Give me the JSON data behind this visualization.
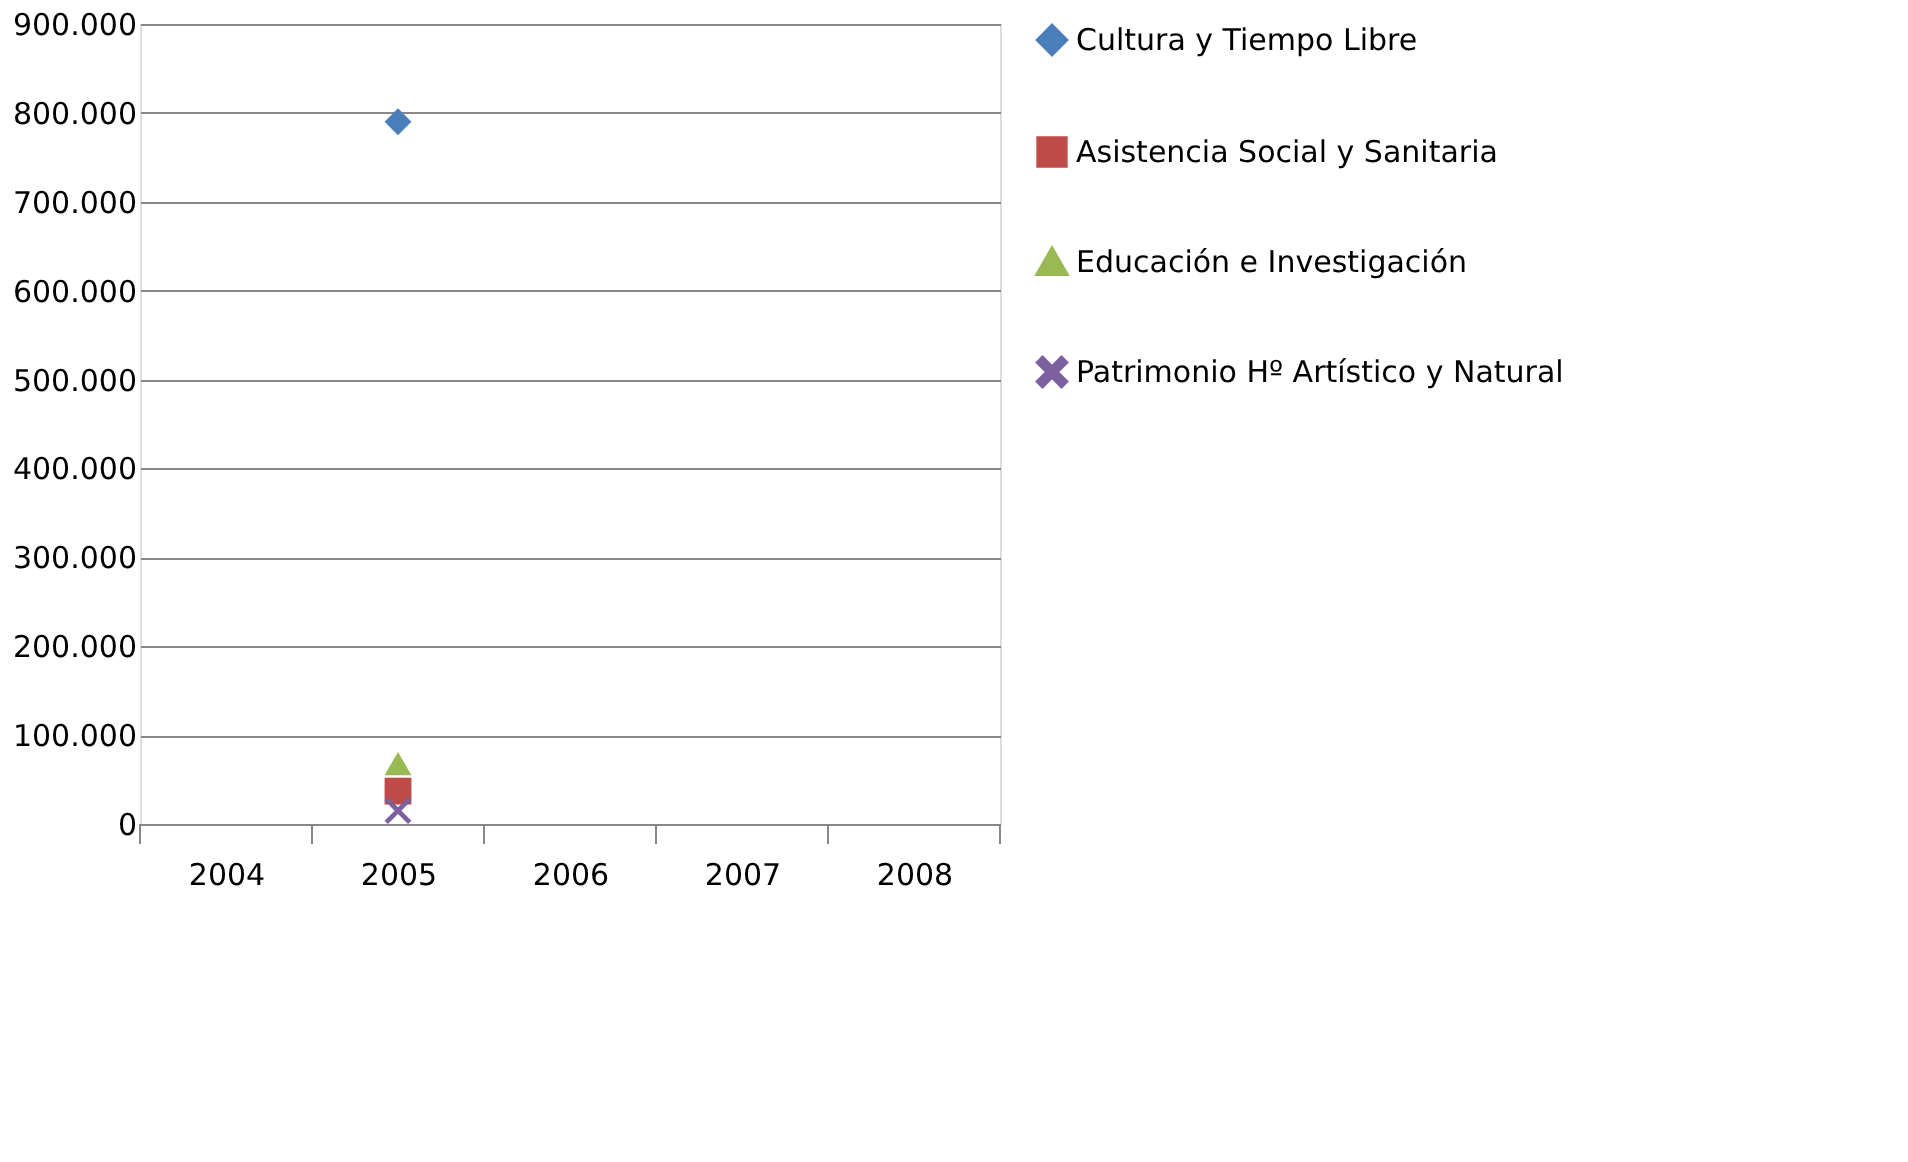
{
  "chart_data": {
    "type": "line",
    "categories": [
      "2004",
      "2005",
      "2006",
      "2007",
      "2008"
    ],
    "series": [
      {
        "name": "Cultura y Tiempo Libre",
        "color": "#4a7ebb",
        "marker": "diamond",
        "values": [
          null,
          790000,
          null,
          null,
          null
        ]
      },
      {
        "name": "Asistencia Social y Sanitaria",
        "color": "#be4b48",
        "marker": "square",
        "values": [
          null,
          37000,
          null,
          null,
          null
        ]
      },
      {
        "name": "Educación e Investigación",
        "color": "#98b954",
        "marker": "triangle",
        "values": [
          null,
          68000,
          null,
          null,
          null
        ]
      },
      {
        "name": "Patrimonio Hº Artístico y Natural",
        "color": "#7d60a0",
        "marker": "cross",
        "values": [
          null,
          15000,
          null,
          null,
          null
        ]
      }
    ],
    "ylim": [
      0,
      900000
    ],
    "yticks": [
      {
        "value": 0,
        "label": "0"
      },
      {
        "value": 100000,
        "label": "100.000"
      },
      {
        "value": 200000,
        "label": "200.000"
      },
      {
        "value": 300000,
        "label": "300.000"
      },
      {
        "value": 400000,
        "label": "400.000"
      },
      {
        "value": 500000,
        "label": "500.000"
      },
      {
        "value": 600000,
        "label": "600.000"
      },
      {
        "value": 700000,
        "label": "700.000"
      },
      {
        "value": 800000,
        "label": "800.000"
      },
      {
        "value": 900000,
        "label": "900.000"
      }
    ],
    "grid": "y",
    "legend": "right"
  }
}
